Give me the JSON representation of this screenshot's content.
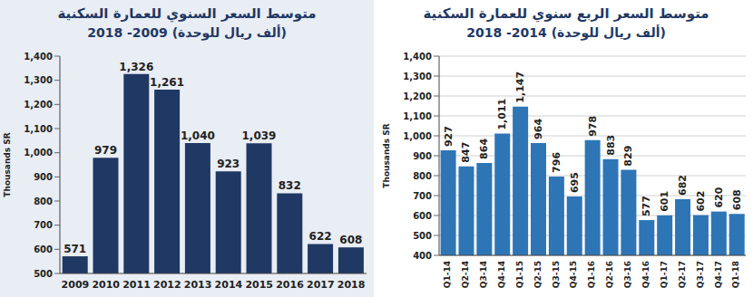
{
  "chart_data": [
    {
      "type": "bar",
      "title": "متوسط السعر السنوي للعمارة السكنية",
      "subtitle": "(ألف ريال للوحدة) 2009- 2018",
      "ylabel": "Thousands SR",
      "categories": [
        "2009",
        "2010",
        "2011",
        "2012",
        "2013",
        "2014",
        "2015",
        "2016",
        "2017",
        "2018"
      ],
      "values": [
        571,
        979,
        1326,
        1261,
        1040,
        923,
        1039,
        832,
        622,
        608
      ],
      "value_labels": [
        "571",
        "979",
        "1,326",
        "1,261",
        "1,040",
        "923",
        "1,039",
        "832",
        "622",
        "608"
      ],
      "color": "#1f3864",
      "ylim": [
        500,
        1400
      ],
      "yticks": [
        500,
        600,
        700,
        800,
        900,
        {
          "value": 1000,
          "label": "1,000"
        },
        {
          "value": 1100,
          "label": "1,100"
        },
        {
          "value": 1200,
          "label": "1,200"
        },
        {
          "value": 1300,
          "label": "1,300"
        },
        {
          "value": 1400,
          "label": "1,400"
        }
      ],
      "grid": false,
      "data_labels": true
    },
    {
      "type": "bar",
      "title": "متوسط السعر الربع سنوي للعمارة السكنية",
      "subtitle": "(ألف ريال للوحدة) 2014- 2018",
      "ylabel": "Thousands SR",
      "categories": [
        "Q1-14",
        "Q2-14",
        "Q3-14",
        "Q4-14",
        "Q1-15",
        "Q2-15",
        "Q3-15",
        "Q4-15",
        "Q1-16",
        "Q2-16",
        "Q3-16",
        "Q4-16",
        "Q1-17",
        "Q2-17",
        "Q3-17",
        "Q4-17",
        "Q1-18"
      ],
      "values": [
        927,
        847,
        864,
        1011,
        1147,
        964,
        796,
        695,
        978,
        883,
        829,
        577,
        601,
        682,
        602,
        620,
        608
      ],
      "value_labels": [
        "927",
        "847",
        "864",
        "1,011",
        "1,147",
        "964",
        "796",
        "695",
        "978",
        "883",
        "829",
        "577",
        "601",
        "682",
        "602",
        "620",
        "608"
      ],
      "color": "#2e75b6",
      "ylim": [
        400,
        1400
      ],
      "yticks": [
        400,
        500,
        600,
        700,
        800,
        900,
        {
          "value": 1000,
          "label": "1,000"
        },
        {
          "value": 1100,
          "label": "1,100"
        },
        {
          "value": 1200,
          "label": "1,200"
        },
        {
          "value": 1300,
          "label": "1,300"
        },
        {
          "value": 1400,
          "label": "1,400"
        }
      ],
      "grid": true,
      "data_labels": true
    }
  ]
}
